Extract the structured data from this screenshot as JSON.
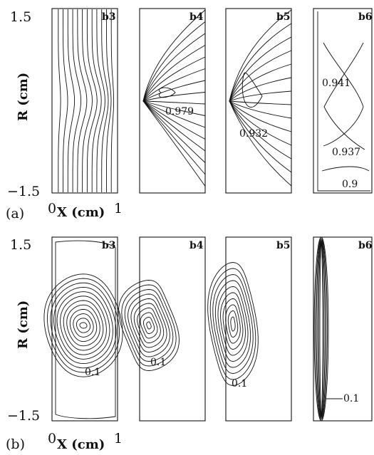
{
  "figure": {
    "part_a": {
      "label": "(a)",
      "y_tick_top": "1.5",
      "y_tick_bottom": "−1.5",
      "y_axis_label": "R (cm)",
      "x_tick_left": "0",
      "x_tick_right": "1",
      "x_axis_label": "X (cm)",
      "panels": [
        {
          "tag": "b3",
          "contour_labels": []
        },
        {
          "tag": "b4",
          "contour_labels": [
            "0.979"
          ]
        },
        {
          "tag": "b5",
          "contour_labels": [
            "0.932"
          ]
        },
        {
          "tag": "b6",
          "contour_labels": [
            "0.941",
            "0.937",
            "0.9"
          ]
        }
      ]
    },
    "part_b": {
      "label": "(b)",
      "y_tick_top": "1.5",
      "y_tick_bottom": "−1.5",
      "y_axis_label": "R (cm)",
      "x_tick_left": "0",
      "x_tick_right": "1",
      "x_axis_label": "X (cm)",
      "panels": [
        {
          "tag": "b3",
          "contour_labels": [
            "0.1"
          ]
        },
        {
          "tag": "b4",
          "contour_labels": [
            "0.1"
          ]
        },
        {
          "tag": "b5",
          "contour_labels": [
            "0.1"
          ]
        },
        {
          "tag": "b6",
          "contour_labels": [
            "0.1"
          ]
        }
      ]
    }
  }
}
